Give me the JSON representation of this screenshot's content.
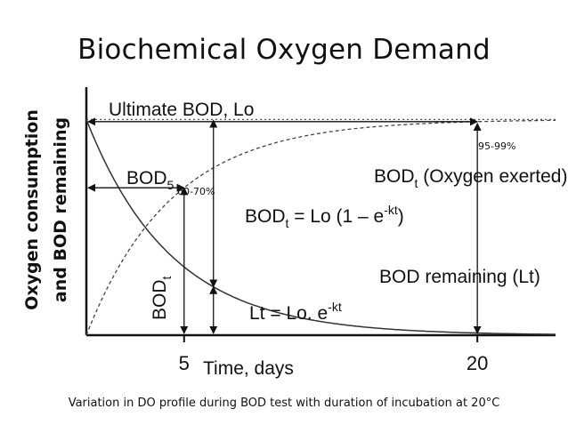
{
  "slide": {
    "title": "Biochemical Oxygen Demand",
    "caption": "Variation in DO profile during BOD test with duration of incubation at 20°C"
  },
  "chart_data": {
    "type": "line",
    "xlabel": "Time, days",
    "ylabel_line1": "Oxygen consumption",
    "ylabel_line2": "and BOD remaining",
    "xlim": [
      0,
      24
    ],
    "ylim": [
      0,
      1.15
    ],
    "x_ticks": [
      {
        "value": 5,
        "label": "5"
      },
      {
        "value": 20,
        "label": "20"
      }
    ],
    "model": {
      "Lo": 1.0,
      "k": 0.23
    },
    "series": [
      {
        "key": "exerted",
        "style": "dashed",
        "formula": "Lo*(1-exp(-k*t))"
      },
      {
        "key": "remaining",
        "style": "solid",
        "formula": "Lo*exp(-k*t)"
      }
    ],
    "ultimate_level": 1.0,
    "labels": {
      "ultimate": "Ultimate BOD, Lo",
      "bod5_main": "BOD",
      "bod5_sub": "5",
      "bodt_vertical_main": "BOD",
      "bodt_vertical_sub": "t",
      "exerted_main": "BOD",
      "exerted_sub": "t",
      "exerted_rest": " (Oxygen exerted)",
      "eq1_a": "BOD",
      "eq1_sub": "t",
      "eq1_b": " = Lo (1 – e",
      "eq1_sup": "-kt",
      "eq1_c": ")",
      "remaining": "BOD remaining (Lt)",
      "eq2_a": "Lt = Lo. e",
      "eq2_sup": "-kt",
      "pct_5": "60-70%",
      "pct_20": "95-99%"
    },
    "grid": false,
    "legend": "none"
  }
}
